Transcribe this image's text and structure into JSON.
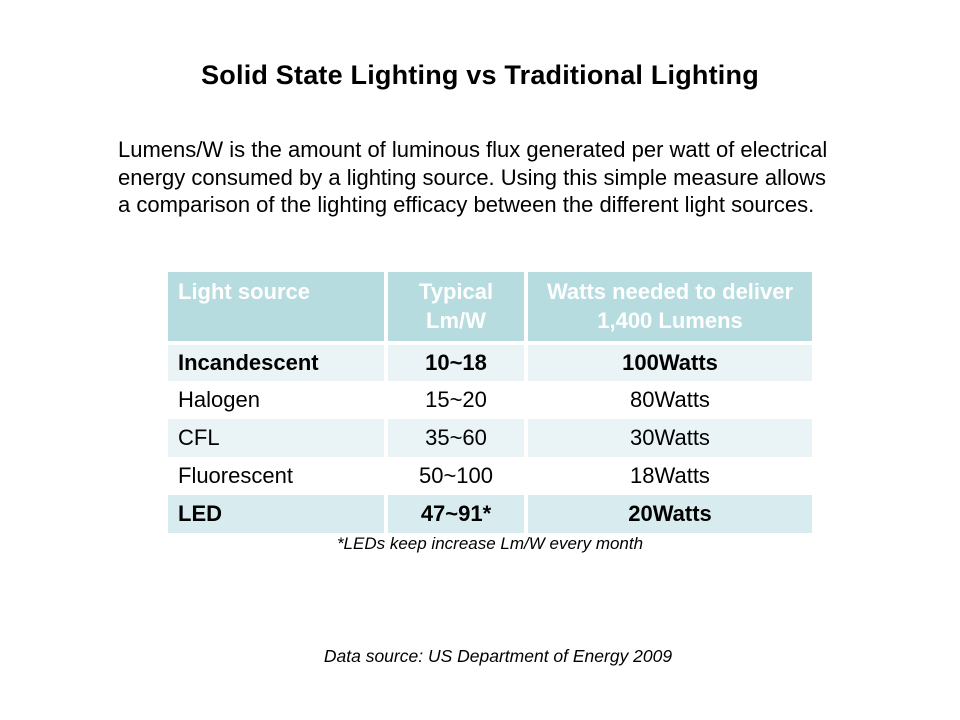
{
  "slide": {
    "title": "Solid State Lighting vs Traditional Lighting",
    "paragraph": "Lumens/W is the amount of luminous flux generated per watt of electrical energy consumed by a lighting source. Using this simple measure allows a comparison of the lighting efficacy between the different light sources.",
    "footnote": "*LEDs keep increase Lm/W every month",
    "data_source": "Data source: US Department of Energy 2009"
  },
  "table": {
    "headers": [
      "Light source",
      "Typical Lm/W",
      "Watts needed to deliver 1,400 Lumens"
    ],
    "rows": [
      {
        "source": "Incandescent",
        "lm_w": "10~18",
        "watts": "100Watts",
        "bold": true,
        "shaded": true,
        "highlight": false
      },
      {
        "source": "Halogen",
        "lm_w": "15~20",
        "watts": "80Watts",
        "bold": false,
        "shaded": false,
        "highlight": false
      },
      {
        "source": "CFL",
        "lm_w": "35~60",
        "watts": "30Watts",
        "bold": false,
        "shaded": true,
        "highlight": false
      },
      {
        "source": "Fluorescent",
        "lm_w": "50~100",
        "watts": "18Watts",
        "bold": false,
        "shaded": false,
        "highlight": false
      },
      {
        "source": "LED",
        "lm_w": "47~91*",
        "watts": "20Watts",
        "bold": true,
        "shaded": false,
        "highlight": true
      }
    ]
  },
  "colors": {
    "header_bg": "#b7dce0",
    "header_text": "#ffffff",
    "shaded_row_bg": "#eaf4f6",
    "led_row_bg": "#d8ecef",
    "body_text": "#000000",
    "background": "#ffffff"
  }
}
